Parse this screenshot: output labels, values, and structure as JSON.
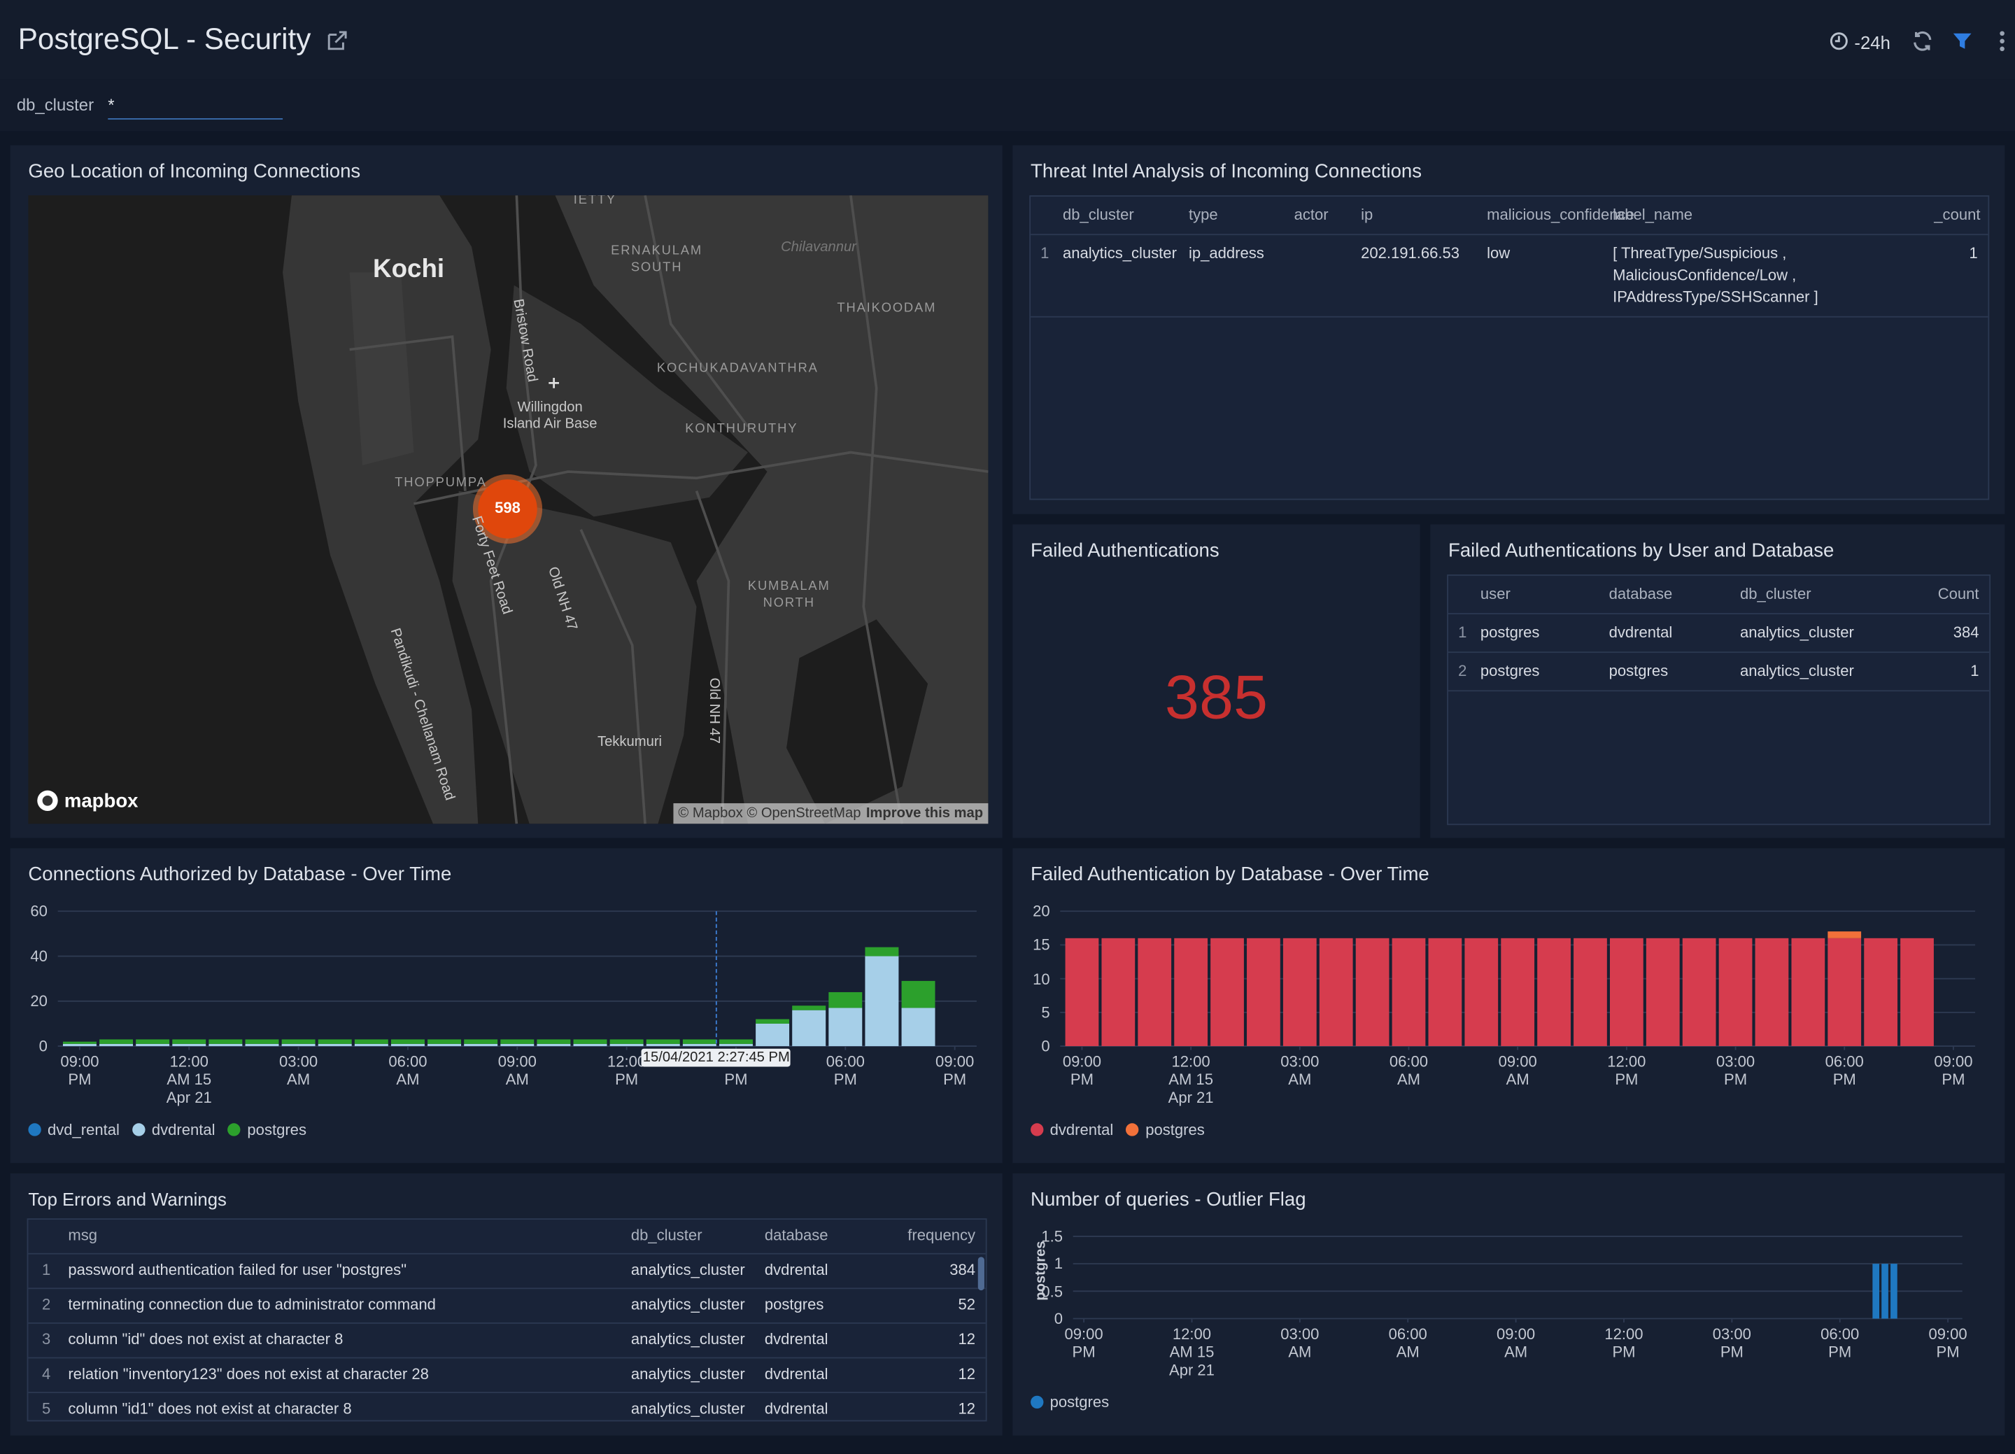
{
  "header": {
    "title": "PostgreSQL - Security",
    "time_range": "-24h"
  },
  "filter": {
    "label": "db_cluster",
    "value": "*"
  },
  "geo_map": {
    "title": "Geo Location of Incoming Connections",
    "places": [
      "IETTY",
      "ERNAKULAM\nSOUTH",
      "Chilavannur",
      "Kochi",
      "Bristow Road",
      "THAIKOODAM",
      "KOCHUKADAVANTHRA",
      "Willingdon\nIsland Air Base",
      "KONTHURUTHY",
      "THOPPUMPA",
      "Forty Feet Road",
      "Old NH 47",
      "KUMBALAM\nNORTH",
      "Pandikudi - Chellanam Road",
      "Old NH 47",
      "Tekkumuri"
    ],
    "cluster_count": 598,
    "attribution": "© Mapbox © OpenStreetMap",
    "improve_link": "Improve this map",
    "logo": "mapbox"
  },
  "threat_intel": {
    "title": "Threat Intel Analysis of Incoming Connections",
    "columns": [
      "db_cluster",
      "type",
      "actor",
      "ip",
      "malicious_confidence",
      "label_name",
      "_count"
    ],
    "rows": [
      [
        1,
        "analytics_cluster",
        "ip_address",
        null,
        "202.191.66.53",
        "low",
        "[ ThreatType/Suspicious , MaliciousConfidence/Low , IPAddressType/SSHScanner ]",
        1
      ]
    ]
  },
  "failed_auth": {
    "title": "Failed Authentications",
    "value": 385
  },
  "failed_by_user": {
    "title": "Failed Authentications by User and Database",
    "columns": [
      "user",
      "database",
      "db_cluster",
      "Count"
    ],
    "rows": [
      [
        1,
        "postgres",
        "dvdrental",
        "analytics_cluster",
        384
      ],
      [
        2,
        "postgres",
        "postgres",
        "analytics_cluster",
        1
      ]
    ]
  },
  "top_errors": {
    "title": "Top Errors and Warnings",
    "columns": [
      "msg",
      "db_cluster",
      "database",
      "frequency"
    ],
    "rows": [
      [
        1,
        "password authentication failed for user \"postgres\"",
        "analytics_cluster",
        "dvdrental",
        384
      ],
      [
        2,
        "terminating connection due to administrator command",
        "analytics_cluster",
        "postgres",
        52
      ],
      [
        3,
        "column \"id\" does not exist at character 8",
        "analytics_cluster",
        "dvdrental",
        12
      ],
      [
        4,
        "relation \"inventory123\" does not exist at character 28",
        "analytics_cluster",
        "dvdrental",
        12
      ],
      [
        5,
        "column \"id1\" does not exist at character 8",
        "analytics_cluster",
        "dvdrental",
        12
      ]
    ]
  },
  "chart_data": [
    {
      "type": "stacked_bar",
      "title": "Connections Authorized by Database - Over Time",
      "x": [
        0,
        1,
        2,
        3,
        4,
        5,
        6,
        7,
        8,
        9,
        10,
        11,
        12,
        13,
        14,
        15,
        16,
        17,
        18,
        19,
        20,
        21,
        22,
        23
      ],
      "xlim": [
        -0.6,
        24.6
      ],
      "xticks": [
        {
          "value": 0,
          "label": "09:00\nPM"
        },
        {
          "value": 3,
          "label": "12:00\nAM 15\nApr 21"
        },
        {
          "value": 6,
          "label": "03:00\nAM"
        },
        {
          "value": 9,
          "label": "06:00\nAM"
        },
        {
          "value": 12,
          "label": "09:00\nAM"
        },
        {
          "value": 15,
          "label": "12:00\nPM"
        },
        {
          "value": 18,
          "label": "03:00\nPM"
        },
        {
          "value": 21,
          "label": "06:00\nPM"
        },
        {
          "value": 24,
          "label": "09:00\nPM"
        }
      ],
      "ylim": [
        0,
        60
      ],
      "yticks": [
        0,
        20,
        40,
        60
      ],
      "series": [
        {
          "name": "dvd_rental",
          "color": "#1f78c1",
          "values": [
            0,
            0,
            0,
            0,
            0,
            0,
            0,
            0,
            0,
            0,
            0,
            0,
            0,
            0,
            0,
            0,
            0,
            0,
            0,
            0,
            0,
            0,
            0,
            0
          ]
        },
        {
          "name": "dvdrental",
          "color": "#a6cfe8",
          "values": [
            1,
            1,
            1,
            1,
            1,
            1,
            1,
            1,
            1,
            1,
            1,
            1,
            1,
            1,
            1,
            1,
            1,
            1,
            1,
            10,
            16,
            17,
            40,
            17
          ]
        },
        {
          "name": "postgres",
          "color": "#2ca02c",
          "values": [
            1,
            2,
            2,
            2,
            2,
            2,
            2,
            2,
            2,
            2,
            2,
            2,
            2,
            2,
            2,
            2,
            2,
            2,
            2,
            2,
            2,
            7,
            4,
            12
          ]
        }
      ],
      "hover": {
        "x": 17.46,
        "label": "15/04/2021 2:27:45 PM"
      }
    },
    {
      "type": "stacked_bar",
      "title": "Failed Authentication by Database - Over Time",
      "x": [
        0,
        1,
        2,
        3,
        4,
        5,
        6,
        7,
        8,
        9,
        10,
        11,
        12,
        13,
        14,
        15,
        16,
        17,
        18,
        19,
        20,
        21,
        22,
        23
      ],
      "xlim": [
        -0.6,
        24.6
      ],
      "xticks": [
        {
          "value": 0,
          "label": "09:00\nPM"
        },
        {
          "value": 3,
          "label": "12:00\nAM 15\nApr 21"
        },
        {
          "value": 6,
          "label": "03:00\nAM"
        },
        {
          "value": 9,
          "label": "06:00\nAM"
        },
        {
          "value": 12,
          "label": "09:00\nAM"
        },
        {
          "value": 15,
          "label": "12:00\nPM"
        },
        {
          "value": 18,
          "label": "03:00\nPM"
        },
        {
          "value": 21,
          "label": "06:00\nPM"
        },
        {
          "value": 24,
          "label": "09:00\nPM"
        }
      ],
      "ylim": [
        0,
        20
      ],
      "yticks": [
        0,
        5,
        10,
        15,
        20
      ],
      "series": [
        {
          "name": "dvdrental",
          "color": "#d63c4e",
          "values": [
            16,
            16,
            16,
            16,
            16,
            16,
            16,
            16,
            16,
            16,
            16,
            16,
            16,
            16,
            16,
            16,
            16,
            16,
            16,
            16,
            16,
            16,
            16,
            16
          ]
        },
        {
          "name": "postgres",
          "color": "#f2713a",
          "values": [
            0,
            0,
            0,
            0,
            0,
            0,
            0,
            0,
            0,
            0,
            0,
            0,
            0,
            0,
            0,
            0,
            0,
            0,
            0,
            0,
            0,
            1,
            0,
            0
          ]
        }
      ]
    },
    {
      "type": "bar",
      "title": "Number of queries - Outlier Flag",
      "ylabel": "postgres",
      "x": [
        22,
        22.25,
        22.5
      ],
      "xlim": [
        -0.3,
        24.4
      ],
      "xticks": [
        {
          "value": 0,
          "label": "09:00\nPM"
        },
        {
          "value": 3,
          "label": "12:00\nAM 15\nApr 21"
        },
        {
          "value": 6,
          "label": "03:00\nAM"
        },
        {
          "value": 9,
          "label": "06:00\nAM"
        },
        {
          "value": 12,
          "label": "09:00\nAM"
        },
        {
          "value": 15,
          "label": "12:00\nPM"
        },
        {
          "value": 18,
          "label": "03:00\nPM"
        },
        {
          "value": 21,
          "label": "06:00\nPM"
        },
        {
          "value": 24,
          "label": "09:00\nPM"
        }
      ],
      "ylim": [
        0,
        1.5
      ],
      "yticks": [
        0,
        0.5,
        1,
        1.5
      ],
      "series": [
        {
          "name": "postgres",
          "color": "#1f78c1",
          "values": [
            1,
            1,
            1
          ]
        }
      ]
    }
  ]
}
